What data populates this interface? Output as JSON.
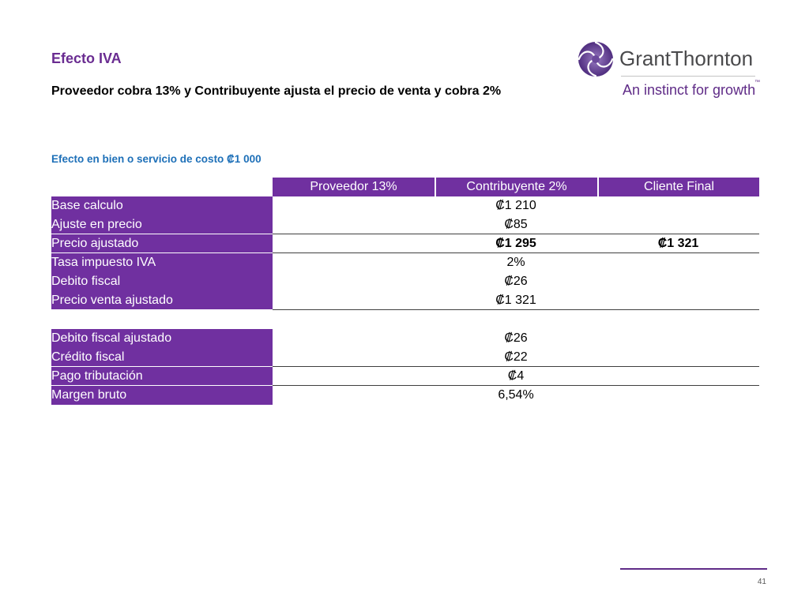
{
  "slide": {
    "title": "Efecto IVA",
    "subtitle": "Proveedor cobra 13% y Contribuyente ajusta el precio de venta y cobra 2%",
    "section_label": "Efecto en bien o servicio de costo ₡1 000",
    "page_number": "41"
  },
  "logo": {
    "icon": "grant-thornton-swirl-icon",
    "wordmark": "GrantThornton",
    "tagline": "An instinct for growth",
    "trademark": "™"
  },
  "table": {
    "headers": {
      "proveedor": "Proveedor 13%",
      "contribuyente": "Contribuyente 2%",
      "cliente_final": "Cliente Final"
    },
    "rows": [
      {
        "label": "Base calculo",
        "contribuyente": "₡1 210"
      },
      {
        "label": "Ajuste en precio",
        "contribuyente": "₡85"
      },
      {
        "label": "Precio ajustado",
        "contribuyente": "₡1 295",
        "cliente_final": "₡1 321"
      },
      {
        "label": "Tasa impuesto IVA",
        "contribuyente": "2%"
      },
      {
        "label": "Debito fiscal",
        "contribuyente": "₡26"
      },
      {
        "label": "Precio venta ajustado",
        "contribuyente": "₡1 321"
      },
      {
        "label": "Debito fiscal ajustado",
        "contribuyente": "₡26"
      },
      {
        "label": "Crédito fiscal",
        "contribuyente": "₡22"
      },
      {
        "label": "Pago tributación",
        "contribuyente": "₡4"
      },
      {
        "label": "Margen bruto",
        "contribuyente": "6,54%"
      }
    ]
  },
  "colors": {
    "table_purple": "#7030a0",
    "title_purple": "#6a2c91",
    "section_blue": "#1e70b8",
    "logo_purple": "#5f2b87",
    "wordmark_gray": "#4a4a4c"
  }
}
